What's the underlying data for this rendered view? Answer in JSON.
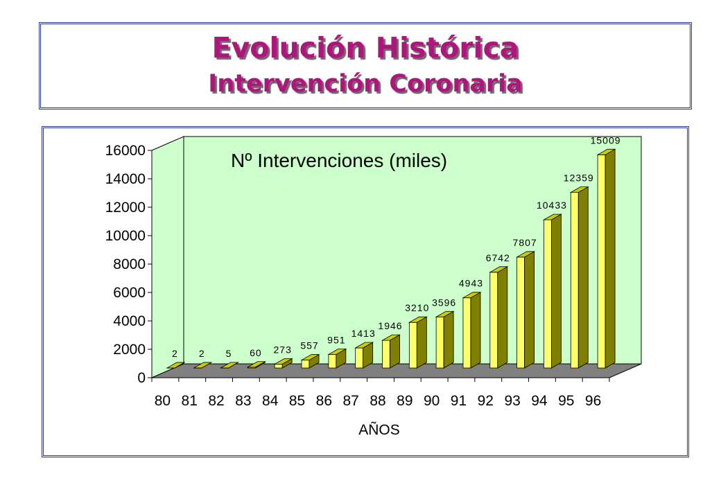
{
  "header": {
    "title": "Evolución Histórica",
    "subtitle": "Intervención Coronaria"
  },
  "chart_data": {
    "type": "bar",
    "title": "Nº Intervenciones (miles)",
    "xlabel": "AÑOS",
    "ylabel": "",
    "categories": [
      "80",
      "81",
      "82",
      "83",
      "84",
      "85",
      "86",
      "87",
      "88",
      "89",
      "90",
      "91",
      "92",
      "93",
      "94",
      "95",
      "96"
    ],
    "values": [
      2,
      2,
      5,
      60,
      273,
      557,
      951,
      1413,
      1946,
      3210,
      3596,
      4943,
      6742,
      7807,
      10433,
      12359,
      15009
    ],
    "data_labels": [
      "2",
      "2",
      "5",
      "60",
      "273",
      "557",
      "951",
      "1413",
      "1946",
      "3210",
      "3596",
      "4943",
      "6742",
      "7807",
      "10433",
      "12359",
      "15009"
    ],
    "ylim": [
      0,
      16000
    ],
    "yticks": [
      0,
      2000,
      4000,
      6000,
      8000,
      10000,
      12000,
      14000,
      16000
    ],
    "ytick_labels": [
      "0",
      "2000",
      "4000",
      "6000",
      "8000",
      "10000",
      "12000",
      "14000",
      "16000"
    ],
    "grid": false,
    "style": "3d-column",
    "colors": {
      "bar_front": "#ffff66",
      "bar_side": "#808000",
      "bar_top": "#cccc00",
      "wall": "#ccffcc",
      "floor": "#808080",
      "title_text": "#b0157e",
      "frame": "#2a35a0"
    }
  }
}
